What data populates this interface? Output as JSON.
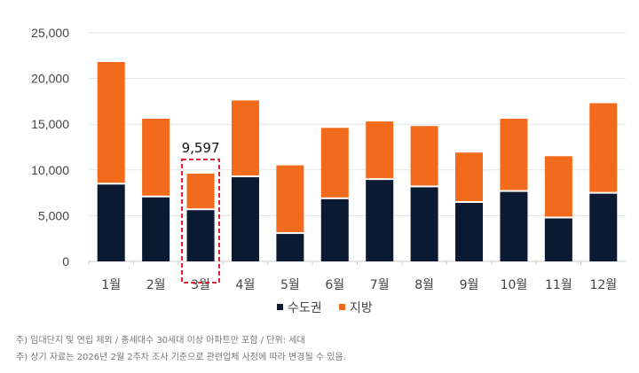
{
  "chart_data": {
    "type": "bar",
    "stacked": true,
    "categories": [
      "1월",
      "2월",
      "3월",
      "4월",
      "5월",
      "6월",
      "7월",
      "8월",
      "9월",
      "10월",
      "11월",
      "12월"
    ],
    "series": [
      {
        "name": "수도권",
        "color": "#0b1a33",
        "values": [
          8400,
          7000,
          5600,
          9200,
          3000,
          6800,
          8900,
          8100,
          6400,
          7600,
          4700,
          7400
        ]
      },
      {
        "name": "지방",
        "color": "#f26a1b",
        "values": [
          13400,
          8600,
          3997,
          8400,
          7500,
          7800,
          6400,
          6700,
          5500,
          8000,
          6800,
          9900
        ]
      }
    ],
    "ylim": [
      0,
      25000
    ],
    "yticks": [
      "0",
      "5,000",
      "10,000",
      "15,000",
      "20,000",
      "25,000"
    ],
    "grid": true,
    "legend": "bottom",
    "annotation": {
      "category": "3월",
      "label": "9,597",
      "highlight_color": "#e0202a"
    }
  },
  "notes": [
    "주) 임대단지 및 연립 제외 / 총세대수 30세대 이상 아파트만 포함 / 단위: 세대",
    "주) 상기 자료는 2026년 2월 2주차 조사 기준으로 관련업체 사정에 따라 변경될 수 있음."
  ]
}
